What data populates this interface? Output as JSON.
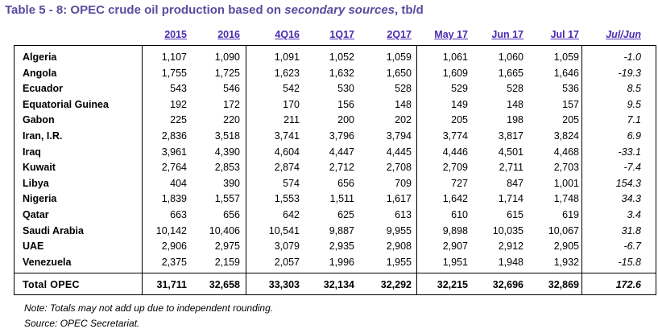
{
  "title": {
    "prefix": "Table 5 - 8: OPEC crude oil production based on ",
    "italic": "secondary sources",
    "suffix": ", tb/d"
  },
  "columns": [
    "2015",
    "2016",
    "4Q16",
    "1Q17",
    "2Q17",
    "May 17",
    "Jun 17",
    "Jul 17",
    "Jul/Jun"
  ],
  "rows": [
    {
      "name": "Algeria",
      "values": [
        "1,107",
        "1,090",
        "1,091",
        "1,052",
        "1,059",
        "1,061",
        "1,060",
        "1,059",
        "-1.0"
      ]
    },
    {
      "name": "Angola",
      "values": [
        "1,755",
        "1,725",
        "1,623",
        "1,632",
        "1,650",
        "1,609",
        "1,665",
        "1,646",
        "-19.3"
      ]
    },
    {
      "name": "Ecuador",
      "values": [
        "543",
        "546",
        "542",
        "530",
        "528",
        "529",
        "528",
        "536",
        "8.5"
      ]
    },
    {
      "name": "Equatorial Guinea",
      "values": [
        "192",
        "172",
        "170",
        "156",
        "148",
        "149",
        "148",
        "157",
        "9.5"
      ]
    },
    {
      "name": "Gabon",
      "values": [
        "225",
        "220",
        "211",
        "200",
        "202",
        "205",
        "198",
        "205",
        "7.1"
      ]
    },
    {
      "name": "Iran, I.R.",
      "values": [
        "2,836",
        "3,518",
        "3,741",
        "3,796",
        "3,794",
        "3,774",
        "3,817",
        "3,824",
        "6.9"
      ]
    },
    {
      "name": "Iraq",
      "values": [
        "3,961",
        "4,390",
        "4,604",
        "4,447",
        "4,445",
        "4,446",
        "4,501",
        "4,468",
        "-33.1"
      ]
    },
    {
      "name": "Kuwait",
      "values": [
        "2,764",
        "2,853",
        "2,874",
        "2,712",
        "2,708",
        "2,709",
        "2,711",
        "2,703",
        "-7.4"
      ]
    },
    {
      "name": "Libya",
      "values": [
        "404",
        "390",
        "574",
        "656",
        "709",
        "727",
        "847",
        "1,001",
        "154.3"
      ]
    },
    {
      "name": "Nigeria",
      "values": [
        "1,839",
        "1,557",
        "1,553",
        "1,511",
        "1,617",
        "1,642",
        "1,714",
        "1,748",
        "34.3"
      ]
    },
    {
      "name": "Qatar",
      "values": [
        "663",
        "656",
        "642",
        "625",
        "613",
        "610",
        "615",
        "619",
        "3.4"
      ]
    },
    {
      "name": "Saudi Arabia",
      "values": [
        "10,142",
        "10,406",
        "10,541",
        "9,887",
        "9,955",
        "9,898",
        "10,035",
        "10,067",
        "31.8"
      ]
    },
    {
      "name": "UAE",
      "values": [
        "2,906",
        "2,975",
        "3,079",
        "2,935",
        "2,908",
        "2,907",
        "2,912",
        "2,905",
        "-6.7"
      ]
    },
    {
      "name": "Venezuela",
      "values": [
        "2,375",
        "2,159",
        "2,057",
        "1,996",
        "1,955",
        "1,951",
        "1,948",
        "1,932",
        "-15.8"
      ]
    }
  ],
  "total": {
    "name": "Total  OPEC",
    "values": [
      "31,711",
      "32,658",
      "33,303",
      "32,134",
      "32,292",
      "32,215",
      "32,696",
      "32,869",
      "172.6"
    ]
  },
  "notes": [
    "Note: Totals may not add up due to independent rounding.",
    "Source: OPEC Secretariat."
  ]
}
